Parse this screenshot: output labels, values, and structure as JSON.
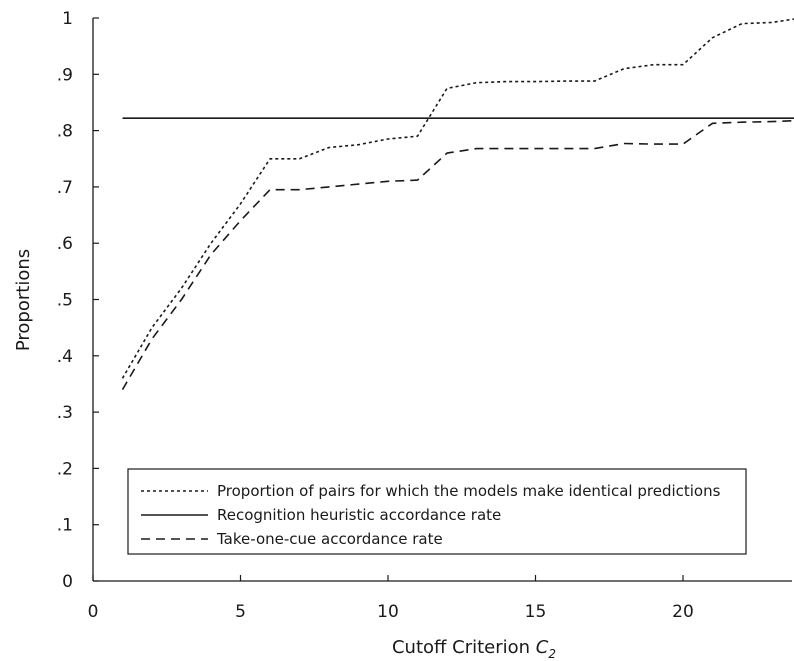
{
  "chart_data": {
    "type": "line",
    "xlabel_main": "Cutoff Criterion ",
    "xlabel_italic": "C",
    "xlabel_sub": "2",
    "ylabel": "Proportions",
    "xlim": [
      0,
      24
    ],
    "ylim": [
      0,
      1
    ],
    "x_ticks": [
      {
        "value": 0,
        "label": "0"
      },
      {
        "value": 5,
        "label": "5"
      },
      {
        "value": 10,
        "label": "10"
      },
      {
        "value": 15,
        "label": "15"
      },
      {
        "value": 20,
        "label": "20"
      }
    ],
    "y_ticks": [
      {
        "value": 0,
        "label": "0"
      },
      {
        "value": 0.1,
        "label": ".1"
      },
      {
        "value": 0.2,
        "label": ".2"
      },
      {
        "value": 0.3,
        "label": ".3"
      },
      {
        "value": 0.4,
        "label": ".4"
      },
      {
        "value": 0.5,
        "label": ".5"
      },
      {
        "value": 0.6,
        "label": ".6"
      },
      {
        "value": 0.7,
        "label": ".7"
      },
      {
        "value": 0.8,
        "label": ".8"
      },
      {
        "value": 0.9,
        "label": ".9"
      },
      {
        "value": 1,
        "label": "1"
      }
    ],
    "series": [
      {
        "name": "Proportion of pairs for which the models make identical predictions",
        "style": "dotted",
        "x": [
          1,
          2,
          3,
          4,
          5,
          6,
          7,
          8,
          9,
          10,
          11,
          12,
          13,
          14,
          15,
          16,
          17,
          18,
          19,
          20,
          21,
          22,
          23,
          24
        ],
        "y": [
          0.36,
          0.45,
          0.52,
          0.6,
          0.67,
          0.75,
          0.75,
          0.77,
          0.775,
          0.785,
          0.79,
          0.875,
          0.885,
          0.887,
          0.887,
          0.888,
          0.888,
          0.91,
          0.917,
          0.917,
          0.965,
          0.99,
          0.992,
          1.0
        ]
      },
      {
        "name": "Recognition heuristic accordance rate",
        "style": "solid",
        "x": [
          1,
          24
        ],
        "y": [
          0.822,
          0.822
        ]
      },
      {
        "name": "Take-one-cue accordance rate",
        "style": "dashed",
        "x": [
          1,
          2,
          3,
          4,
          5,
          6,
          7,
          8,
          9,
          10,
          11,
          12,
          13,
          14,
          15,
          16,
          17,
          18,
          19,
          20,
          21,
          22,
          23,
          24
        ],
        "y": [
          0.34,
          0.43,
          0.5,
          0.58,
          0.64,
          0.695,
          0.695,
          0.7,
          0.705,
          0.71,
          0.712,
          0.76,
          0.768,
          0.768,
          0.768,
          0.768,
          0.768,
          0.777,
          0.776,
          0.776,
          0.813,
          0.815,
          0.816,
          0.818
        ]
      }
    ],
    "legend_position": "bottom-center"
  }
}
